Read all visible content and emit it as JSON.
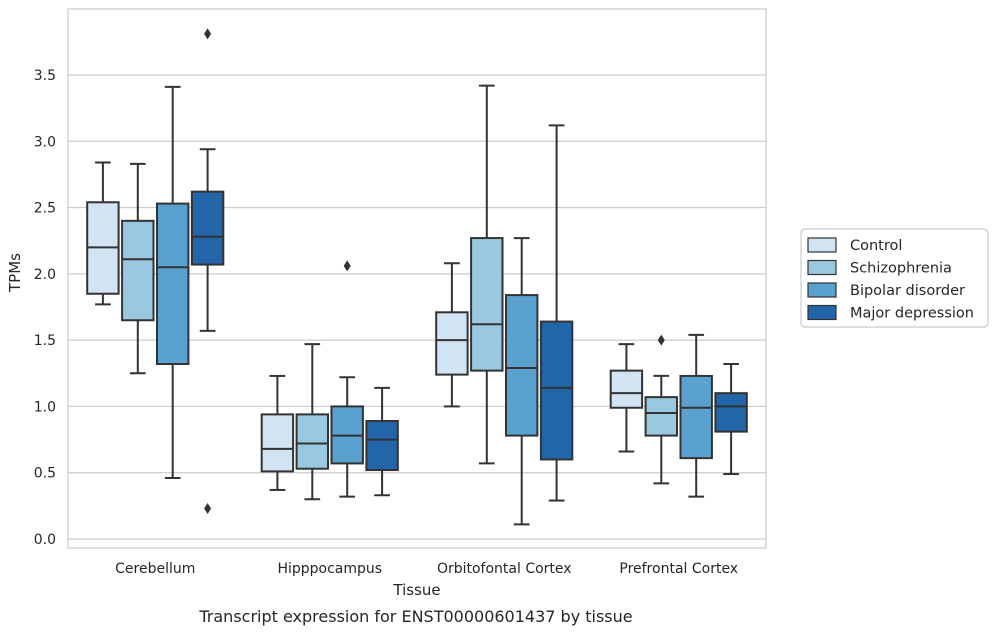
{
  "chart_data": {
    "type": "box",
    "caption": "Transcript expression for ENST00000601437 by tissue",
    "xlabel": "Tissue",
    "ylabel": "TPMs",
    "ylim": [
      -0.05,
      3.95
    ],
    "yticks": [
      "0.0",
      "0.5",
      "1.0",
      "1.5",
      "2.0",
      "2.5",
      "3.0",
      "3.5"
    ],
    "grid": "horizontal",
    "legend_position": "right",
    "categories": [
      "Cerebellum",
      "Hipppocampus",
      "Orbitofontal Cortex",
      "Prefrontal Cortex"
    ],
    "series": [
      {
        "name": "Control",
        "color": "#d2e3f3",
        "boxes": [
          {
            "whislo": 1.77,
            "q1": 1.85,
            "med": 2.2,
            "q3": 2.54,
            "whishi": 2.84,
            "fliers": []
          },
          {
            "whislo": 0.37,
            "q1": 0.51,
            "med": 0.68,
            "q3": 0.94,
            "whishi": 1.23,
            "fliers": []
          },
          {
            "whislo": 1.0,
            "q1": 1.24,
            "med": 1.5,
            "q3": 1.71,
            "whishi": 2.08,
            "fliers": []
          },
          {
            "whislo": 0.66,
            "q1": 0.99,
            "med": 1.1,
            "q3": 1.27,
            "whishi": 1.47,
            "fliers": []
          }
        ]
      },
      {
        "name": "Schizophrenia",
        "color": "#9ac8e0",
        "boxes": [
          {
            "whislo": 1.25,
            "q1": 1.65,
            "med": 2.11,
            "q3": 2.4,
            "whishi": 2.83,
            "fliers": []
          },
          {
            "whislo": 0.3,
            "q1": 0.53,
            "med": 0.72,
            "q3": 0.94,
            "whishi": 1.47,
            "fliers": []
          },
          {
            "whislo": 0.57,
            "q1": 1.27,
            "med": 1.62,
            "q3": 2.27,
            "whishi": 3.42,
            "fliers": []
          },
          {
            "whislo": 0.42,
            "q1": 0.78,
            "med": 0.95,
            "q3": 1.07,
            "whishi": 1.23,
            "fliers": [
              1.5
            ]
          }
        ]
      },
      {
        "name": "Bipolar disorder",
        "color": "#5aa1cf",
        "boxes": [
          {
            "whislo": 0.46,
            "q1": 1.32,
            "med": 2.05,
            "q3": 2.53,
            "whishi": 3.41,
            "fliers": []
          },
          {
            "whislo": 0.32,
            "q1": 0.57,
            "med": 0.78,
            "q3": 1.0,
            "whishi": 1.22,
            "fliers": [
              2.06
            ]
          },
          {
            "whislo": 0.11,
            "q1": 0.78,
            "med": 1.29,
            "q3": 1.84,
            "whishi": 2.27,
            "fliers": []
          },
          {
            "whislo": 0.32,
            "q1": 0.61,
            "med": 0.99,
            "q3": 1.23,
            "whishi": 1.54,
            "fliers": []
          }
        ]
      },
      {
        "name": "Major depression",
        "color": "#2365a9",
        "boxes": [
          {
            "whislo": 1.57,
            "q1": 2.07,
            "med": 2.28,
            "q3": 2.62,
            "whishi": 2.94,
            "fliers": [
              0.23,
              3.81
            ]
          },
          {
            "whislo": 0.33,
            "q1": 0.52,
            "med": 0.75,
            "q3": 0.89,
            "whishi": 1.14,
            "fliers": []
          },
          {
            "whislo": 0.29,
            "q1": 0.6,
            "med": 1.14,
            "q3": 1.64,
            "whishi": 3.12,
            "fliers": []
          },
          {
            "whislo": 0.49,
            "q1": 0.81,
            "med": 1.0,
            "q3": 1.1,
            "whishi": 1.32,
            "fliers": []
          }
        ]
      }
    ]
  }
}
